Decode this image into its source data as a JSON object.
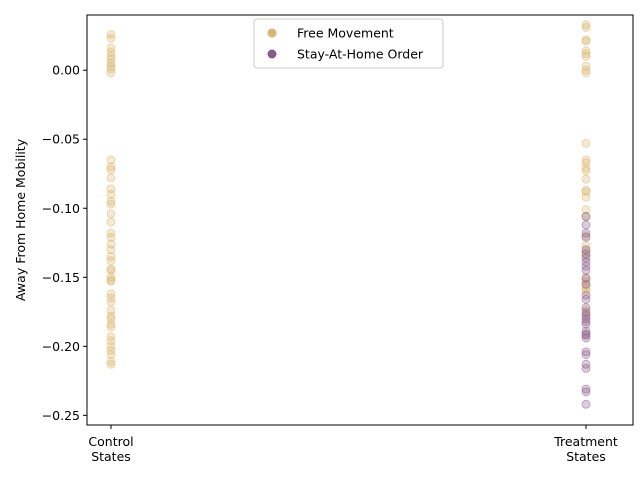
{
  "chart_data": {
    "type": "scatter",
    "title": "",
    "xlabel": "",
    "ylabel": "Away From Home Mobility",
    "categories": [
      [
        "Control",
        "States"
      ],
      [
        "Treatment",
        "States"
      ]
    ],
    "ylim": [
      -0.257,
      0.04
    ],
    "yticks": [
      0.0,
      -0.05,
      -0.1,
      -0.15,
      -0.2,
      -0.25
    ],
    "ytick_labels": [
      "0.00",
      "−0.05",
      "−0.10",
      "−0.15",
      "−0.20",
      "−0.25"
    ],
    "grid": false,
    "legend_position": "top-center",
    "series": [
      {
        "name": "Free Movement",
        "color": "#dbb56e",
        "points": [
          {
            "x": 0,
            "y": 0.026
          },
          {
            "x": 0,
            "y": 0.023
          },
          {
            "x": 0,
            "y": 0.016
          },
          {
            "x": 0,
            "y": 0.013
          },
          {
            "x": 0,
            "y": 0.01
          },
          {
            "x": 0,
            "y": 0.008
          },
          {
            "x": 0,
            "y": 0.005
          },
          {
            "x": 0,
            "y": 0.003
          },
          {
            "x": 0,
            "y": 0.001
          },
          {
            "x": 0,
            "y": -0.002
          },
          {
            "x": 0,
            "y": -0.065
          },
          {
            "x": 0,
            "y": -0.07
          },
          {
            "x": 0,
            "y": -0.072
          },
          {
            "x": 0,
            "y": -0.078
          },
          {
            "x": 0,
            "y": -0.086
          },
          {
            "x": 0,
            "y": -0.09
          },
          {
            "x": 0,
            "y": -0.095
          },
          {
            "x": 0,
            "y": -0.097
          },
          {
            "x": 0,
            "y": -0.104
          },
          {
            "x": 0,
            "y": -0.11
          },
          {
            "x": 0,
            "y": -0.118
          },
          {
            "x": 0,
            "y": -0.121
          },
          {
            "x": 0,
            "y": -0.126
          },
          {
            "x": 0,
            "y": -0.13
          },
          {
            "x": 0,
            "y": -0.135
          },
          {
            "x": 0,
            "y": -0.138
          },
          {
            "x": 0,
            "y": -0.144
          },
          {
            "x": 0,
            "y": -0.145
          },
          {
            "x": 0,
            "y": -0.15
          },
          {
            "x": 0,
            "y": -0.152
          },
          {
            "x": 0,
            "y": -0.153
          },
          {
            "x": 0,
            "y": -0.162
          },
          {
            "x": 0,
            "y": -0.165
          },
          {
            "x": 0,
            "y": -0.168
          },
          {
            "x": 0,
            "y": -0.174
          },
          {
            "x": 0,
            "y": -0.178
          },
          {
            "x": 0,
            "y": -0.18
          },
          {
            "x": 0,
            "y": -0.184
          },
          {
            "x": 0,
            "y": -0.186
          },
          {
            "x": 0,
            "y": -0.193
          },
          {
            "x": 0,
            "y": -0.196
          },
          {
            "x": 0,
            "y": -0.2
          },
          {
            "x": 0,
            "y": -0.203
          },
          {
            "x": 0,
            "y": -0.206
          },
          {
            "x": 0,
            "y": -0.211
          },
          {
            "x": 0,
            "y": -0.213
          },
          {
            "x": 1,
            "y": 0.033
          },
          {
            "x": 1,
            "y": 0.031
          },
          {
            "x": 1,
            "y": 0.022
          },
          {
            "x": 1,
            "y": 0.021
          },
          {
            "x": 1,
            "y": 0.014
          },
          {
            "x": 1,
            "y": 0.012
          },
          {
            "x": 1,
            "y": 0.01
          },
          {
            "x": 1,
            "y": 0.003
          },
          {
            "x": 1,
            "y": 0.0
          },
          {
            "x": 1,
            "y": -0.002
          },
          {
            "x": 1,
            "y": -0.053
          },
          {
            "x": 1,
            "y": -0.065
          },
          {
            "x": 1,
            "y": -0.067
          },
          {
            "x": 1,
            "y": -0.071
          },
          {
            "x": 1,
            "y": -0.073
          },
          {
            "x": 1,
            "y": -0.079
          },
          {
            "x": 1,
            "y": -0.087
          },
          {
            "x": 1,
            "y": -0.088
          },
          {
            "x": 1,
            "y": -0.092
          },
          {
            "x": 1,
            "y": -0.101
          },
          {
            "x": 1,
            "y": -0.106
          },
          {
            "x": 1,
            "y": -0.12
          },
          {
            "x": 1,
            "y": -0.127
          },
          {
            "x": 1,
            "y": -0.131
          },
          {
            "x": 1,
            "y": -0.134
          },
          {
            "x": 1,
            "y": -0.15
          },
          {
            "x": 1,
            "y": -0.153
          },
          {
            "x": 1,
            "y": -0.156
          },
          {
            "x": 1,
            "y": -0.158
          },
          {
            "x": 1,
            "y": -0.16
          },
          {
            "x": 1,
            "y": -0.174
          },
          {
            "x": 1,
            "y": -0.175
          }
        ]
      },
      {
        "name": "Stay-At-Home Order",
        "color": "#8a5a8c",
        "points": [
          {
            "x": 1,
            "y": -0.106
          },
          {
            "x": 1,
            "y": -0.112
          },
          {
            "x": 1,
            "y": -0.118
          },
          {
            "x": 1,
            "y": -0.121
          },
          {
            "x": 1,
            "y": -0.13
          },
          {
            "x": 1,
            "y": -0.133
          },
          {
            "x": 1,
            "y": -0.136
          },
          {
            "x": 1,
            "y": -0.139
          },
          {
            "x": 1,
            "y": -0.142
          },
          {
            "x": 1,
            "y": -0.145
          },
          {
            "x": 1,
            "y": -0.151
          },
          {
            "x": 1,
            "y": -0.155
          },
          {
            "x": 1,
            "y": -0.163
          },
          {
            "x": 1,
            "y": -0.166
          },
          {
            "x": 1,
            "y": -0.172
          },
          {
            "x": 1,
            "y": -0.176
          },
          {
            "x": 1,
            "y": -0.178
          },
          {
            "x": 1,
            "y": -0.18
          },
          {
            "x": 1,
            "y": -0.182
          },
          {
            "x": 1,
            "y": -0.184
          },
          {
            "x": 1,
            "y": -0.189
          },
          {
            "x": 1,
            "y": -0.191
          },
          {
            "x": 1,
            "y": -0.192
          },
          {
            "x": 1,
            "y": -0.194
          },
          {
            "x": 1,
            "y": -0.204
          },
          {
            "x": 1,
            "y": -0.206
          },
          {
            "x": 1,
            "y": -0.213
          },
          {
            "x": 1,
            "y": -0.216
          },
          {
            "x": 1,
            "y": -0.231
          },
          {
            "x": 1,
            "y": -0.233
          },
          {
            "x": 1,
            "y": -0.242
          }
        ]
      }
    ]
  }
}
